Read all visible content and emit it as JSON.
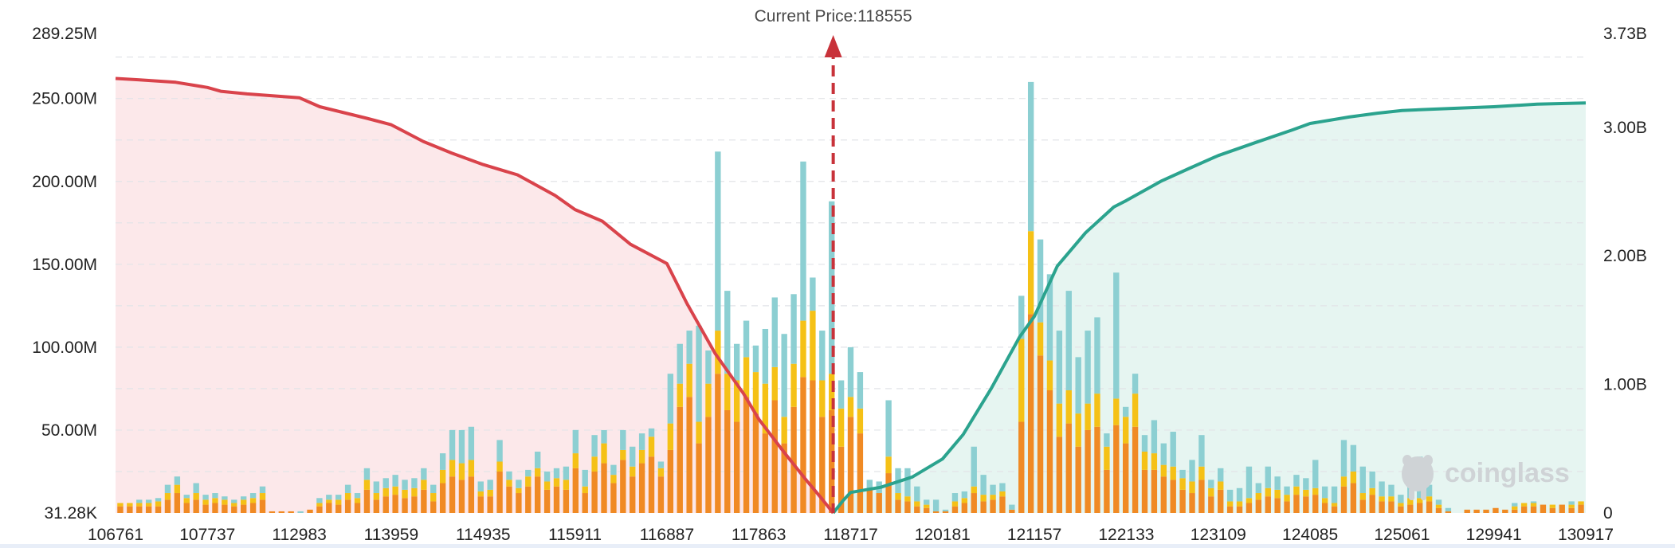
{
  "chart_data": {
    "type": "bar",
    "title": "Current Price:118555",
    "current_price": 118555,
    "current_price_label": "Current Price:118555",
    "watermark": "coinglass",
    "x_tick_labels": [
      "106761",
      "107737",
      "112983",
      "113959",
      "114935",
      "115911",
      "116887",
      "117863",
      "118717",
      "120181",
      "121157",
      "122133",
      "123109",
      "124085",
      "125061",
      "129941",
      "130917"
    ],
    "y_left": {
      "ticks": [
        "31.28K",
        "50.00M",
        "100.00M",
        "150.00M",
        "200.00M",
        "250.00M",
        "289.25M"
      ],
      "tick_values": [
        0,
        50,
        100,
        150,
        200,
        250,
        289.25
      ],
      "unit": "M",
      "range": [
        0,
        289.25
      ]
    },
    "y_right": {
      "ticks": [
        "0",
        "1.00B",
        "2.00B",
        "3.00B",
        "3.73B"
      ],
      "tick_values": [
        0,
        1,
        2,
        3,
        3.73
      ],
      "unit": "B",
      "range": [
        0,
        3.73
      ]
    },
    "grid": true,
    "stack_series": [
      {
        "name": "orange",
        "color": "#f08a24"
      },
      {
        "name": "yellow",
        "color": "#f5c116"
      },
      {
        "name": "teal",
        "color": "#8ccfd2"
      }
    ],
    "bars": [
      [
        4,
        2,
        0
      ],
      [
        4,
        2,
        0
      ],
      [
        4,
        2,
        2
      ],
      [
        4,
        2,
        2
      ],
      [
        4,
        3,
        2
      ],
      [
        8,
        4,
        5
      ],
      [
        12,
        5,
        5
      ],
      [
        6,
        3,
        2
      ],
      [
        8,
        4,
        6
      ],
      [
        5,
        3,
        3
      ],
      [
        6,
        3,
        3
      ],
      [
        5,
        3,
        2
      ],
      [
        4,
        2,
        2
      ],
      [
        5,
        3,
        2
      ],
      [
        6,
        3,
        3
      ],
      [
        8,
        4,
        4
      ],
      [
        1,
        0,
        0
      ],
      [
        1,
        0,
        0
      ],
      [
        1,
        0,
        0
      ],
      [
        0,
        0,
        1
      ],
      [
        2,
        0,
        0
      ],
      [
        4,
        2,
        3
      ],
      [
        6,
        2,
        3
      ],
      [
        5,
        3,
        3
      ],
      [
        8,
        4,
        5
      ],
      [
        6,
        3,
        3
      ],
      [
        14,
        6,
        7
      ],
      [
        8,
        4,
        7
      ],
      [
        10,
        5,
        6
      ],
      [
        11,
        5,
        7
      ],
      [
        9,
        5,
        6
      ],
      [
        10,
        5,
        6
      ],
      [
        14,
        6,
        7
      ],
      [
        7,
        5,
        5
      ],
      [
        18,
        8,
        10
      ],
      [
        22,
        10,
        18
      ],
      [
        20,
        10,
        20
      ],
      [
        22,
        10,
        20
      ],
      [
        10,
        3,
        6
      ],
      [
        10,
        4,
        6
      ],
      [
        25,
        6,
        13
      ],
      [
        16,
        4,
        5
      ],
      [
        12,
        3,
        5
      ],
      [
        16,
        6,
        4
      ],
      [
        22,
        5,
        10
      ],
      [
        14,
        5,
        6
      ],
      [
        16,
        5,
        6
      ],
      [
        14,
        6,
        8
      ],
      [
        27,
        9,
        14
      ],
      [
        12,
        4,
        10
      ],
      [
        25,
        9,
        13
      ],
      [
        30,
        12,
        8
      ],
      [
        18,
        5,
        6
      ],
      [
        32,
        6,
        12
      ],
      [
        22,
        6,
        12
      ],
      [
        30,
        8,
        10
      ],
      [
        34,
        12,
        5
      ],
      [
        22,
        5,
        4
      ],
      [
        38,
        16,
        30
      ],
      [
        64,
        14,
        24
      ],
      [
        70,
        20,
        20
      ],
      [
        42,
        13,
        58
      ],
      [
        58,
        20,
        20
      ],
      [
        84,
        26,
        108
      ],
      [
        62,
        22,
        50
      ],
      [
        55,
        25,
        22
      ],
      [
        70,
        24,
        22
      ],
      [
        60,
        25,
        16
      ],
      [
        48,
        30,
        33
      ],
      [
        68,
        20,
        42
      ],
      [
        42,
        16,
        50
      ],
      [
        64,
        26,
        42
      ],
      [
        82,
        34,
        96
      ],
      [
        80,
        42,
        20
      ],
      [
        58,
        22,
        30
      ],
      [
        62,
        22,
        104
      ],
      [
        40,
        23,
        17
      ],
      [
        58,
        12,
        30
      ],
      [
        48,
        15,
        22
      ],
      [
        15,
        0,
        5
      ],
      [
        12,
        0,
        7
      ],
      [
        24,
        10,
        34
      ],
      [
        8,
        4,
        15
      ],
      [
        7,
        3,
        17
      ],
      [
        4,
        3,
        9
      ],
      [
        3,
        2,
        3
      ],
      [
        1,
        0,
        7
      ],
      [
        1,
        0,
        1
      ],
      [
        4,
        3,
        5
      ],
      [
        6,
        3,
        4
      ],
      [
        12,
        4,
        24
      ],
      [
        7,
        4,
        12
      ],
      [
        8,
        3,
        6
      ],
      [
        10,
        3,
        5
      ],
      [
        2,
        0,
        3
      ],
      [
        55,
        50,
        26
      ],
      [
        120,
        50,
        90
      ],
      [
        95,
        20,
        50
      ],
      [
        74,
        18,
        52
      ],
      [
        46,
        20,
        44
      ],
      [
        54,
        20,
        60
      ],
      [
        40,
        20,
        34
      ],
      [
        50,
        16,
        44
      ],
      [
        52,
        20,
        46
      ],
      [
        26,
        14,
        8
      ],
      [
        53,
        16,
        76
      ],
      [
        42,
        16,
        6
      ],
      [
        52,
        20,
        12
      ],
      [
        26,
        11,
        10
      ],
      [
        26,
        10,
        20
      ],
      [
        22,
        7,
        13
      ],
      [
        20,
        8,
        21
      ],
      [
        14,
        7,
        5
      ],
      [
        12,
        7,
        13
      ],
      [
        20,
        8,
        19
      ],
      [
        10,
        5,
        5
      ],
      [
        14,
        5,
        8
      ],
      [
        4,
        3,
        7
      ],
      [
        4,
        3,
        8
      ],
      [
        6,
        3,
        19
      ],
      [
        8,
        4,
        6
      ],
      [
        10,
        5,
        13
      ],
      [
        9,
        5,
        8
      ],
      [
        7,
        4,
        5
      ],
      [
        11,
        5,
        7
      ],
      [
        10,
        4,
        7
      ],
      [
        11,
        4,
        17
      ],
      [
        6,
        3,
        7
      ],
      [
        4,
        2,
        10
      ],
      [
        16,
        6,
        22
      ],
      [
        18,
        7,
        16
      ],
      [
        8,
        4,
        16
      ],
      [
        11,
        4,
        10
      ],
      [
        7,
        3,
        9
      ],
      [
        7,
        3,
        7
      ],
      [
        4,
        2,
        5
      ],
      [
        5,
        4,
        10
      ],
      [
        6,
        3,
        25
      ],
      [
        7,
        3,
        7
      ],
      [
        3,
        2,
        3
      ],
      [
        1,
        0,
        2
      ],
      [
        0,
        0,
        0
      ],
      [
        2,
        0,
        0
      ],
      [
        2,
        0,
        0
      ],
      [
        2,
        0,
        0
      ],
      [
        3,
        0,
        0
      ],
      [
        2,
        0,
        0
      ],
      [
        2,
        2,
        2
      ],
      [
        4,
        2,
        0
      ],
      [
        4,
        2,
        1
      ],
      [
        5,
        0,
        0
      ],
      [
        3,
        2,
        0
      ],
      [
        5,
        0,
        0
      ],
      [
        3,
        2,
        2
      ],
      [
        5,
        2,
        0
      ]
    ],
    "series": [
      {
        "name": "",
        "color": "#d9434b",
        "axis": "right",
        "points": [
          [
            106761,
            3.38
          ],
          [
            107000,
            3.37
          ],
          [
            107400,
            3.35
          ],
          [
            107737,
            3.31
          ],
          [
            108500,
            3.28
          ],
          [
            110000,
            3.26
          ],
          [
            112983,
            3.23
          ],
          [
            113200,
            3.16
          ],
          [
            113700,
            3.07
          ],
          [
            113959,
            3.02
          ],
          [
            114300,
            2.89
          ],
          [
            114600,
            2.8
          ],
          [
            114935,
            2.71
          ],
          [
            115300,
            2.63
          ],
          [
            115700,
            2.47
          ],
          [
            115911,
            2.36
          ],
          [
            116200,
            2.27
          ],
          [
            116500,
            2.09
          ],
          [
            116887,
            1.94
          ],
          [
            117100,
            1.63
          ],
          [
            117400,
            1.24
          ],
          [
            117700,
            0.93
          ],
          [
            117863,
            0.73
          ],
          [
            118100,
            0.47
          ],
          [
            118300,
            0.26
          ],
          [
            118450,
            0.11
          ],
          [
            118555,
            0.0
          ]
        ]
      },
      {
        "name": "",
        "color": "#2ba38e",
        "axis": "right",
        "points": [
          [
            118555,
            0.0
          ],
          [
            118650,
            0.1
          ],
          [
            118717,
            0.16
          ],
          [
            119200,
            0.2
          ],
          [
            119700,
            0.28
          ],
          [
            120181,
            0.42
          ],
          [
            120400,
            0.61
          ],
          [
            120700,
            0.97
          ],
          [
            121000,
            1.37
          ],
          [
            121157,
            1.53
          ],
          [
            121400,
            1.92
          ],
          [
            121700,
            2.18
          ],
          [
            122000,
            2.38
          ],
          [
            122133,
            2.43
          ],
          [
            122500,
            2.58
          ],
          [
            122800,
            2.68
          ],
          [
            123109,
            2.78
          ],
          [
            123500,
            2.88
          ],
          [
            123900,
            2.98
          ],
          [
            124085,
            3.03
          ],
          [
            124500,
            3.08
          ],
          [
            124800,
            3.11
          ],
          [
            125061,
            3.13
          ],
          [
            126500,
            3.14
          ],
          [
            129941,
            3.16
          ],
          [
            130400,
            3.18
          ],
          [
            130917,
            3.19
          ]
        ]
      }
    ]
  }
}
